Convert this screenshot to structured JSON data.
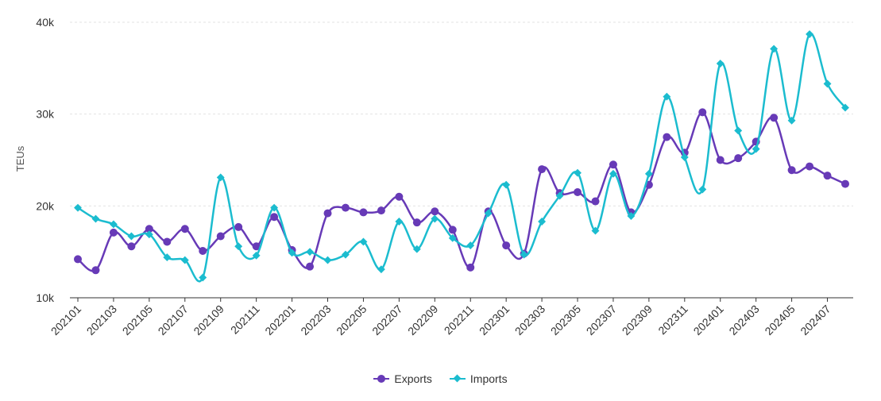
{
  "chart_data": {
    "type": "line",
    "title": "",
    "xlabel": "",
    "ylabel": "TEUs",
    "ylim": [
      10000,
      40000
    ],
    "yticks": [
      "10k",
      "20k",
      "30k",
      "40k"
    ],
    "ytick_values": [
      10000,
      20000,
      30000,
      40000
    ],
    "grid": true,
    "legend": "bottom",
    "x": [
      "202101",
      "202102",
      "202103",
      "202104",
      "202105",
      "202106",
      "202107",
      "202108",
      "202109",
      "202110",
      "202111",
      "202112",
      "202201",
      "202202",
      "202203",
      "202204",
      "202205",
      "202206",
      "202207",
      "202208",
      "202209",
      "202210",
      "202211",
      "202212",
      "202301",
      "202302",
      "202303",
      "202304",
      "202305",
      "202306",
      "202307",
      "202308",
      "202309",
      "202310",
      "202311",
      "202312",
      "202401",
      "202402",
      "202403",
      "202404",
      "202405",
      "202406",
      "202407",
      "202408"
    ],
    "series": [
      {
        "name": "Exports",
        "color": "#673ab7",
        "marker": "circle",
        "values": [
          14200,
          13000,
          17100,
          15600,
          17500,
          16100,
          17500,
          15100,
          16700,
          17700,
          15600,
          18800,
          15200,
          13400,
          19200,
          19800,
          19300,
          19500,
          21000,
          18200,
          19400,
          17400,
          13300,
          19400,
          15700,
          14800,
          24000,
          21400,
          21500,
          20500,
          24500,
          19300,
          22300,
          27500,
          25800,
          30200,
          25000,
          25200,
          27000,
          29600,
          23900,
          24300,
          23300,
          22400
        ]
      },
      {
        "name": "Imports",
        "color": "#1bbccf",
        "marker": "diamond",
        "values": [
          19800,
          18600,
          18000,
          16700,
          16900,
          14400,
          14100,
          12200,
          23100,
          15600,
          14600,
          19800,
          14900,
          15000,
          14100,
          14700,
          16100,
          13100,
          18300,
          15300,
          18600,
          16500,
          15700,
          19200,
          22300,
          14700,
          18300,
          21100,
          23600,
          17300,
          23500,
          18900,
          23500,
          31900,
          25300,
          21800,
          35500,
          28200,
          26200,
          37100,
          29300,
          38700,
          33300,
          30700
        ]
      }
    ]
  }
}
